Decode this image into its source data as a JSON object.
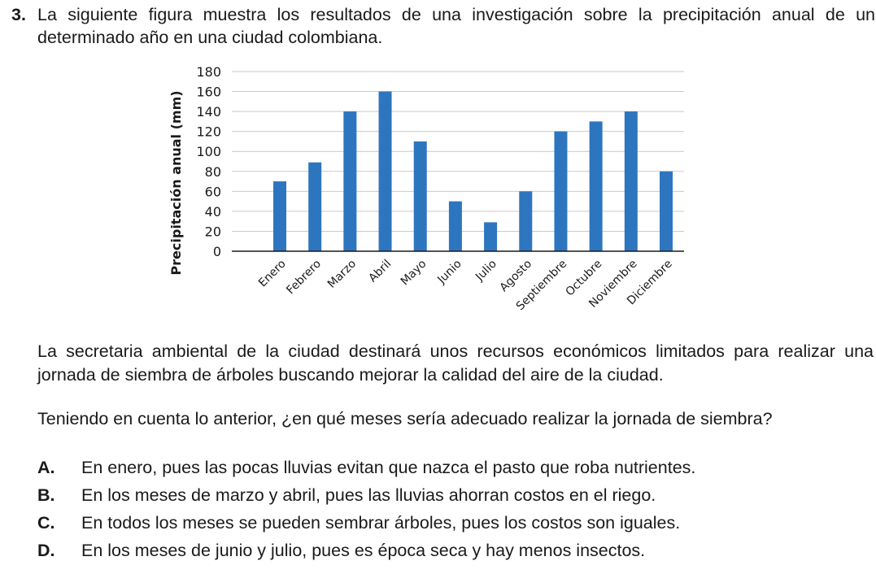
{
  "question": {
    "number": "3.",
    "text": "La siguiente figura muestra los resultados de una investigación sobre la precipitación anual de un determinado año en una ciudad colombiana."
  },
  "chart_data": {
    "type": "bar",
    "title": "",
    "xlabel": "",
    "ylabel": "Precipitación anual (mm)",
    "ylim": [
      0,
      180
    ],
    "yticks": [
      0,
      20,
      40,
      60,
      80,
      100,
      120,
      140,
      160,
      180
    ],
    "grid": true,
    "bar_color": "#2e75c0",
    "categories": [
      "Enero",
      "Febrero",
      "Marzo",
      "Abril",
      "Mayo",
      "Junio",
      "Julio",
      "Agosto",
      "Septiembre",
      "Octubre",
      "Noviembre",
      "Diciembre"
    ],
    "values": [
      70,
      89,
      140,
      160,
      110,
      50,
      29,
      60,
      120,
      130,
      140,
      80
    ]
  },
  "context": "La secretaria ambiental de la ciudad destinará unos recursos económicos limitados para realizar una jornada de siembra de árboles buscando mejorar la calidad del aire de la ciudad.",
  "prompt": "Teniendo en cuenta lo anterior, ¿en qué meses sería adecuado realizar la jornada de siembra?",
  "options": [
    {
      "letter": "A.",
      "text": "En enero, pues las pocas lluvias evitan que nazca el pasto que roba nutrientes."
    },
    {
      "letter": "B.",
      "text": "En los meses de marzo y abril, pues las lluvias ahorran costos en el riego."
    },
    {
      "letter": "C.",
      "text": "En todos los meses se pueden sembrar árboles, pues los costos son iguales."
    },
    {
      "letter": "D.",
      "text": "En los meses de junio y julio, pues es época seca y hay menos insectos."
    }
  ]
}
